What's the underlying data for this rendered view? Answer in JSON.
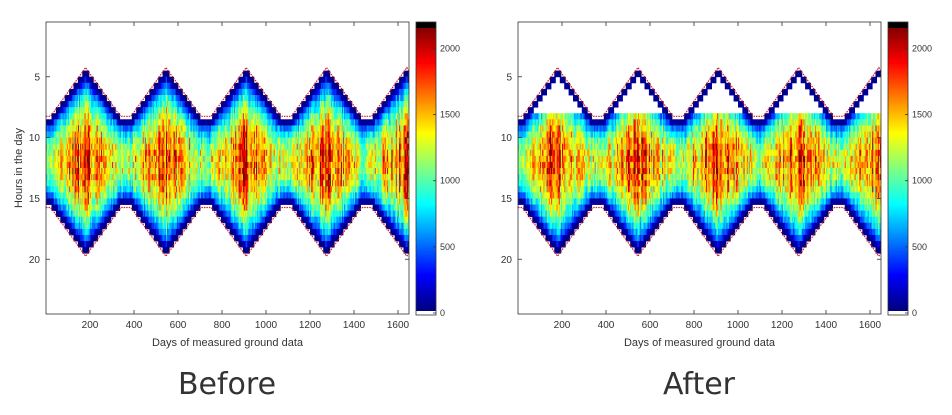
{
  "chart_data": [
    {
      "type": "heatmap",
      "title": "",
      "caption": "Before",
      "xlabel": "Days of measured ground data",
      "ylabel": "Hours in the day",
      "x_ticks": [
        200,
        400,
        600,
        800,
        1000,
        1200,
        1400,
        1600
      ],
      "y_ticks": [
        5,
        10,
        15,
        20
      ],
      "xlim": [
        0,
        1650
      ],
      "ylim": [
        0.5,
        24.5
      ],
      "y_reversed": true,
      "colormap": "jet",
      "colorbar": {
        "range": [
          0,
          2200
        ],
        "ticks": [
          0,
          500,
          1000,
          1500,
          2000
        ]
      },
      "daylight_envelope": {
        "period_days": 365,
        "first_midsummer_day": 180,
        "earliest_sunrise_hour": 4.5,
        "latest_sunrise_hour": 8.5,
        "earliest_sunset_hour": 15.5,
        "latest_sunset_hour": 19.5
      },
      "peak_irradiance": 2000,
      "peak_hour": 12,
      "boundary_color": "#cc1f2a",
      "morning_gaps_removed": false
    },
    {
      "type": "heatmap",
      "title": "",
      "caption": "After",
      "xlabel": "Days of measured ground data",
      "ylabel": "",
      "x_ticks": [
        200,
        400,
        600,
        800,
        1000,
        1200,
        1400,
        1600
      ],
      "y_ticks": [
        5,
        10,
        15,
        20
      ],
      "xlim": [
        0,
        1650
      ],
      "ylim": [
        0.5,
        24.5
      ],
      "y_reversed": true,
      "colormap": "jet",
      "colorbar": {
        "range": [
          0,
          2200
        ],
        "ticks": [
          0,
          500,
          1000,
          1500,
          2000
        ]
      },
      "daylight_envelope": {
        "period_days": 365,
        "first_midsummer_day": 180,
        "earliest_sunrise_hour": 4.5,
        "latest_sunrise_hour": 8.5,
        "earliest_sunset_hour": 15.5,
        "latest_sunset_hour": 19.5
      },
      "peak_irradiance": 2000,
      "peak_hour": 12,
      "boundary_color": "#cc1f2a",
      "morning_gaps_removed": true
    }
  ]
}
